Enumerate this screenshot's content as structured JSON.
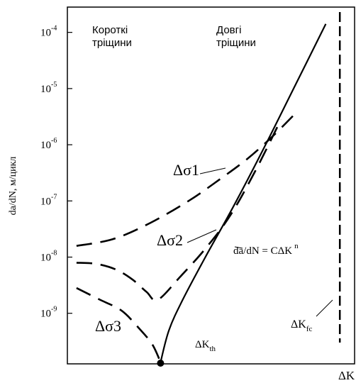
{
  "chart_data": {
    "type": "line",
    "title": "",
    "xlabel": "ΔK",
    "ylabel": "da/dN, м/цикл",
    "x_scale": "log",
    "y_scale": "log",
    "x_ticks": [],
    "y_ticks": [
      "10-4",
      "10-5",
      "10-6",
      "10-7",
      "10-8",
      "10-9"
    ],
    "ylim_log10": [
      -9.9,
      -3.55
    ],
    "xlim_relative": [
      0,
      1
    ],
    "grid": false,
    "legend": "none",
    "regions": [
      {
        "line1": "Короткі",
        "line2": "тріщини"
      },
      {
        "line1": "Довгі",
        "line2": "тріщини"
      }
    ],
    "series": [
      {
        "name": "Δσ1",
        "style": "dashed",
        "x": [
          0.02,
          0.15,
          0.28,
          0.42,
          0.53,
          0.63,
          0.72,
          0.8
        ],
        "log10_y": [
          -7.8,
          -7.68,
          -7.4,
          -7.0,
          -6.62,
          -6.25,
          -5.85,
          -5.45
        ]
      },
      {
        "name": "Δσ2",
        "style": "dashed",
        "x": [
          0.02,
          0.09,
          0.16,
          0.22,
          0.27,
          0.31,
          0.39,
          0.48,
          0.57,
          0.66,
          0.75
        ],
        "log10_y": [
          -8.1,
          -8.12,
          -8.22,
          -8.4,
          -8.62,
          -8.76,
          -8.35,
          -7.85,
          -7.25,
          -6.45,
          -5.55
        ]
      },
      {
        "name": "Δσ3",
        "style": "dashed",
        "x": [
          0.02,
          0.1,
          0.18,
          0.24,
          0.29,
          0.32
        ],
        "log10_y": [
          -8.55,
          -8.75,
          -8.95,
          -9.25,
          -9.55,
          -9.87
        ]
      },
      {
        "name": "da/dN = CΔK n",
        "style": "solid",
        "x": [
          0.32,
          0.35,
          0.4,
          0.48,
          0.58,
          0.69,
          0.8,
          0.91
        ],
        "log10_y": [
          -9.87,
          -9.3,
          -8.75,
          -8.0,
          -7.1,
          -6.05,
          -4.95,
          -3.85
        ]
      }
    ],
    "threshold": {
      "label": "ΔK",
      "subscript": "th",
      "x": 0.32
    },
    "fracture_limit": {
      "label": "ΔK",
      "subscript": "fc",
      "x": 0.96,
      "style": "dashed"
    },
    "formula": {
      "text": "da/dN = CΔK",
      "superscript": "n"
    }
  }
}
